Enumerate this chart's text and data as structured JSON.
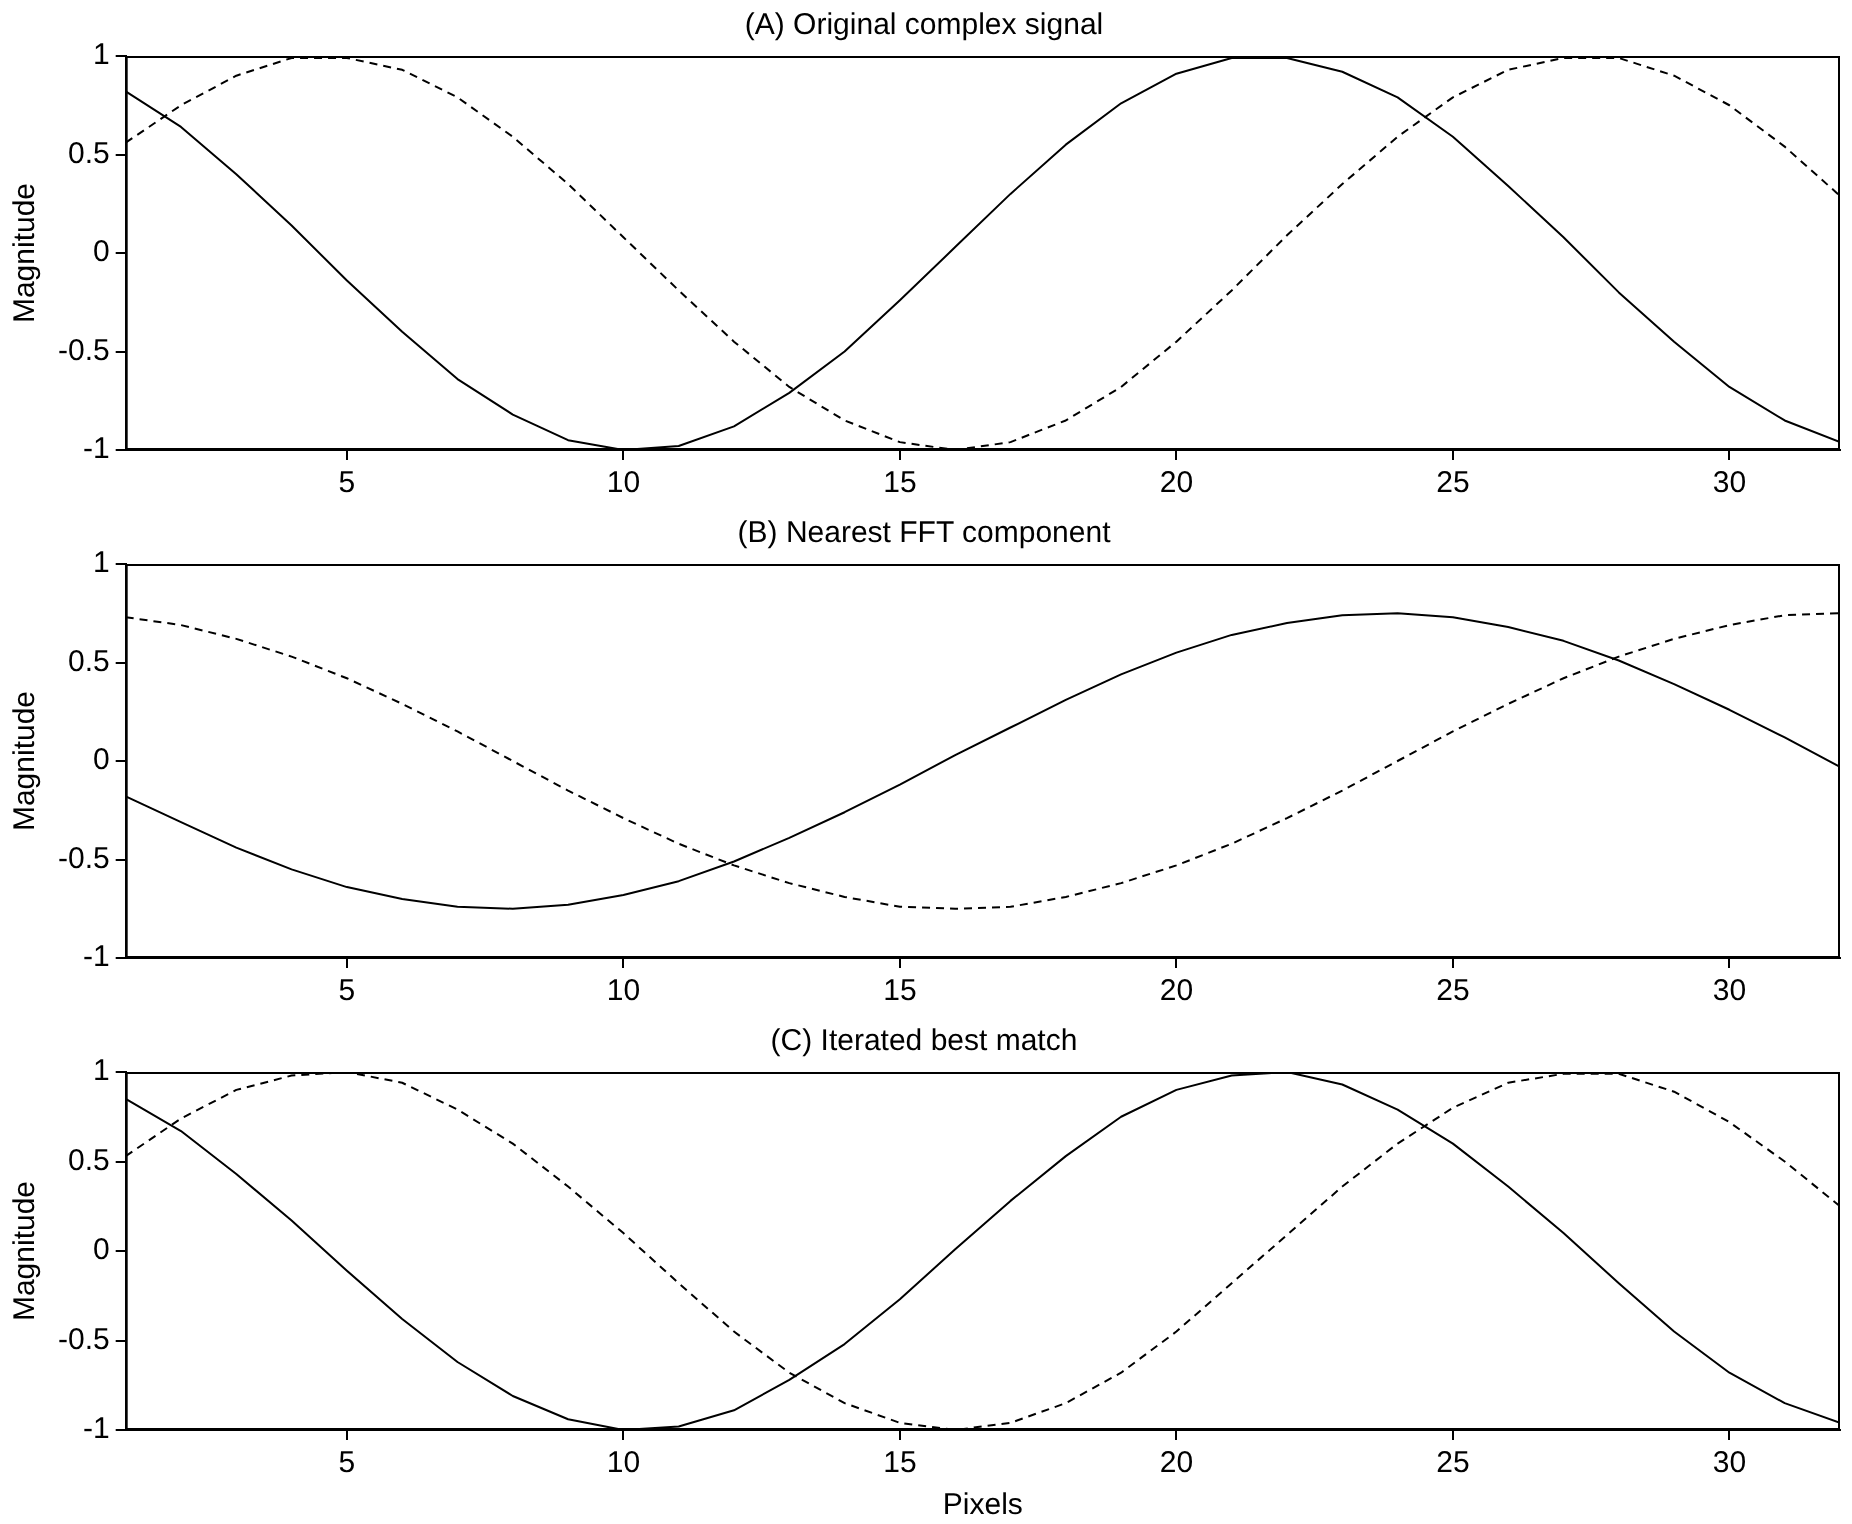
{
  "chart_data": [
    {
      "type": "line",
      "title": "(A) Original complex signal",
      "ylabel": "Magnitude",
      "x": [
        1,
        2,
        3,
        4,
        5,
        6,
        7,
        8,
        9,
        10,
        11,
        12,
        13,
        14,
        15,
        16,
        17,
        18,
        19,
        20,
        21,
        22,
        23,
        24,
        25,
        26,
        27,
        28,
        29,
        30,
        31,
        32
      ],
      "xlim": [
        1,
        32
      ],
      "xticks": [
        5,
        10,
        15,
        20,
        25,
        30
      ],
      "ylim": [
        -1,
        1
      ],
      "yticks": [
        -1,
        -0.5,
        0,
        0.5,
        1
      ],
      "grid": false,
      "legend": false,
      "marker": "none",
      "series": [
        {
          "color": "#000000",
          "line_style": "solid",
          "values": [
            0.82,
            0.64,
            0.4,
            0.14,
            -0.14,
            -0.4,
            -0.64,
            -0.82,
            -0.95,
            -1.0,
            -0.98,
            -0.88,
            -0.71,
            -0.5,
            -0.24,
            0.03,
            0.3,
            0.55,
            0.76,
            0.91,
            0.99,
            0.99,
            0.92,
            0.79,
            0.59,
            0.34,
            0.08,
            -0.2,
            -0.45,
            -0.68,
            -0.85,
            -0.96
          ]
        },
        {
          "color": "#000000",
          "line_style": "dashed",
          "values": [
            0.56,
            0.75,
            0.9,
            0.99,
            0.99,
            0.93,
            0.79,
            0.59,
            0.35,
            0.08,
            -0.19,
            -0.45,
            -0.68,
            -0.85,
            -0.96,
            -1.0,
            -0.96,
            -0.85,
            -0.68,
            -0.45,
            -0.19,
            0.09,
            0.35,
            0.59,
            0.79,
            0.93,
            0.99,
            0.99,
            0.9,
            0.75,
            0.54,
            0.29
          ]
        }
      ]
    },
    {
      "type": "line",
      "title": "(B) Nearest FFT component",
      "ylabel": "Magnitude",
      "x": [
        1,
        2,
        3,
        4,
        5,
        6,
        7,
        8,
        9,
        10,
        11,
        12,
        13,
        14,
        15,
        16,
        17,
        18,
        19,
        20,
        21,
        22,
        23,
        24,
        25,
        26,
        27,
        28,
        29,
        30,
        31,
        32
      ],
      "xlim": [
        1,
        32
      ],
      "xticks": [
        5,
        10,
        15,
        20,
        25,
        30
      ],
      "ylim": [
        -1,
        1
      ],
      "yticks": [
        -1,
        -0.5,
        0,
        0.5,
        1
      ],
      "grid": false,
      "legend": false,
      "marker": "none",
      "series": [
        {
          "color": "#000000",
          "line_style": "solid",
          "values": [
            -0.18,
            -0.31,
            -0.44,
            -0.55,
            -0.64,
            -0.7,
            -0.74,
            -0.75,
            -0.73,
            -0.68,
            -0.61,
            -0.51,
            -0.39,
            -0.26,
            -0.12,
            0.03,
            0.17,
            0.31,
            0.44,
            0.55,
            0.64,
            0.7,
            0.74,
            0.75,
            0.73,
            0.68,
            0.61,
            0.51,
            0.39,
            0.26,
            0.12,
            -0.03
          ]
        },
        {
          "color": "#000000",
          "line_style": "dashed",
          "values": [
            0.73,
            0.69,
            0.62,
            0.53,
            0.42,
            0.29,
            0.15,
            0.0,
            -0.15,
            -0.29,
            -0.42,
            -0.53,
            -0.62,
            -0.69,
            -0.74,
            -0.75,
            -0.74,
            -0.69,
            -0.62,
            -0.53,
            -0.42,
            -0.29,
            -0.15,
            0.0,
            0.15,
            0.29,
            0.42,
            0.53,
            0.62,
            0.69,
            0.74,
            0.75
          ]
        }
      ]
    },
    {
      "type": "line",
      "title": "(C) Iterated best match",
      "xlabel": "Pixels",
      "ylabel": "Magnitude",
      "x": [
        1,
        2,
        3,
        4,
        5,
        6,
        7,
        8,
        9,
        10,
        11,
        12,
        13,
        14,
        15,
        16,
        17,
        18,
        19,
        20,
        21,
        22,
        23,
        24,
        25,
        26,
        27,
        28,
        29,
        30,
        31,
        32
      ],
      "xlim": [
        1,
        32
      ],
      "xticks": [
        5,
        10,
        15,
        20,
        25,
        30
      ],
      "ylim": [
        -1,
        1
      ],
      "yticks": [
        -1,
        -0.5,
        0,
        0.5,
        1
      ],
      "grid": false,
      "legend": false,
      "marker": "none",
      "series": [
        {
          "color": "#000000",
          "line_style": "solid",
          "values": [
            0.85,
            0.67,
            0.43,
            0.17,
            -0.11,
            -0.38,
            -0.62,
            -0.81,
            -0.94,
            -1.0,
            -0.98,
            -0.89,
            -0.72,
            -0.52,
            -0.27,
            0.01,
            0.28,
            0.53,
            0.75,
            0.9,
            0.98,
            1.0,
            0.93,
            0.79,
            0.6,
            0.36,
            0.1,
            -0.18,
            -0.45,
            -0.68,
            -0.85,
            -0.96
          ]
        },
        {
          "color": "#000000",
          "line_style": "dashed",
          "values": [
            0.53,
            0.74,
            0.9,
            0.98,
            1.0,
            0.94,
            0.79,
            0.6,
            0.36,
            0.1,
            -0.18,
            -0.45,
            -0.68,
            -0.85,
            -0.96,
            -1.0,
            -0.96,
            -0.85,
            -0.68,
            -0.45,
            -0.18,
            0.09,
            0.36,
            0.6,
            0.8,
            0.94,
            0.99,
            0.99,
            0.89,
            0.72,
            0.5,
            0.25
          ]
        }
      ]
    }
  ]
}
